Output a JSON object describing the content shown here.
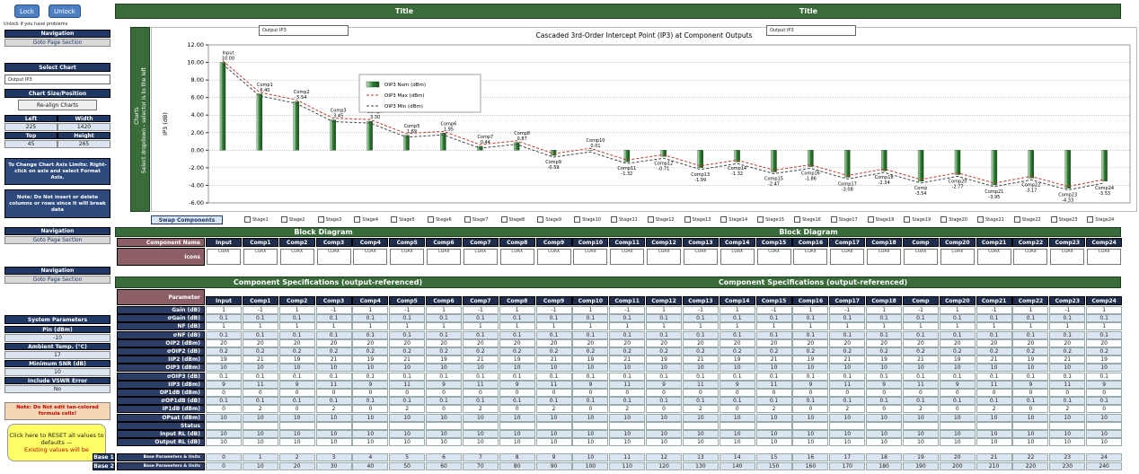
{
  "sidebar": {
    "lock": "Lock",
    "unlock": "Unlock",
    "unlock_hint": "Unlock if you have problems",
    "nav": [
      {
        "title": "Navigation",
        "link": "Goto Page Section"
      },
      {
        "title": "Navigation",
        "link": "Goto Page Section"
      },
      {
        "title": "Navigation",
        "link": "Goto Page Section"
      }
    ],
    "select_chart": {
      "title": "Select Chart",
      "value": "Output IP3"
    },
    "chart_size": {
      "title": "Chart Size/Position",
      "button": "Re-align Charts",
      "fields": [
        {
          "label": "Left",
          "value": 225
        },
        {
          "label": "Width",
          "value": 1420
        },
        {
          "label": "Top",
          "value": 45
        },
        {
          "label": "Height",
          "value": 265
        }
      ]
    },
    "axis_tip": "To Change Chart Axis Limits: Right-click on axis and select Format Axis.",
    "insert_note": "Note: Do Not insert or delete columns or rows since it will break data",
    "system": {
      "title": "System Parameters",
      "fields": [
        {
          "label": "Pin (dBm)",
          "value": -10
        },
        {
          "label": "Ambient Temp. (°C)",
          "value": 17
        },
        {
          "label": "Minimum SNR (dB)",
          "value": 10
        },
        {
          "label": "Include VSWR Error",
          "value": "No"
        }
      ]
    },
    "formula_note": "Note: Do Not edit tan-colored formula cells!",
    "reset": {
      "text": "Click here to RESET all values to defaults —",
      "warning": "Existing values will be"
    },
    "base_labels": [
      "Base 1",
      "Base 2"
    ]
  },
  "titles": [
    "Title",
    "Title"
  ],
  "charts_panel": {
    "title": "Charts",
    "hint": "Select dropdown - selector is to the left"
  },
  "chart_selectors": [
    "Output IP3",
    "Output IP3"
  ],
  "chart_data": {
    "type": "bar",
    "title": "Cascaded 3rd-Order Intercept Point (IP3) at Component Outputs",
    "y_label": "IP3 (dB)",
    "categories": [
      "Input",
      "Comp1",
      "Comp2",
      "Comp3",
      "Comp4",
      "Comp5",
      "Comp6",
      "Comp7",
      "Comp8",
      "Comp9",
      "Comp10",
      "Comp11",
      "Comp12",
      "Comp13",
      "Comp14",
      "Comp15",
      "Comp16",
      "Comp17",
      "Comp18",
      "Comp",
      "Comp20",
      "Comp21",
      "Comp22",
      "Comp23",
      "Comp24"
    ],
    "series": [
      {
        "name": "OIP3 Nom (dBm)",
        "color": "#2e7d32",
        "values": [
          10,
          6.4,
          5.54,
          3.45,
          3.3,
          1.69,
          1.95,
          0.44,
          0.87,
          -0.59,
          0.01,
          -1.32,
          -0.71,
          -1.99,
          -1.32,
          -2.47,
          -1.86,
          -3.08,
          -2.34,
          -3.54,
          -2.77,
          -3.95,
          -3.17,
          -4.33,
          -3.53
        ],
        "value_labels": [
          "10.00",
          "6.40",
          "5.54",
          "3.45",
          "3.30",
          "1.69",
          "1.95",
          "0.44",
          "0.87",
          "-0.59",
          "0.01",
          "-1.32",
          "-0.71",
          "-1.99",
          "-1.32",
          "-2.47",
          "-1.86",
          "-3.08",
          "-2.34",
          "-3.54",
          "-2.77",
          "-3.95",
          "-3.17",
          "-4.33",
          "-3.53"
        ]
      },
      {
        "name": "OIP3 Max (dBm)",
        "color": "#c0392b",
        "values": [
          10.2,
          6.6,
          5.74,
          3.65,
          3.5,
          1.89,
          2.15,
          0.64,
          1.07,
          -0.39,
          0.21,
          -1.12,
          -0.51,
          -1.79,
          -1.12,
          -2.27,
          -1.66,
          -2.88,
          -2.14,
          -3.34,
          -2.57,
          -3.75,
          -2.97,
          -4.13,
          -3.33
        ]
      },
      {
        "name": "OIP3 Min (dBm)",
        "color": "#444444",
        "values": [
          9.8,
          6.2,
          5.34,
          3.25,
          3.1,
          1.49,
          1.75,
          0.24,
          0.67,
          -0.79,
          -0.19,
          -1.52,
          -0.91,
          -2.19,
          -1.52,
          -2.67,
          -2.06,
          -3.28,
          -2.54,
          -3.74,
          -2.97,
          -4.15,
          -3.37,
          -4.53,
          -3.73
        ]
      }
    ],
    "ylim": [
      -6,
      12
    ],
    "yticks": [
      {
        "value": -6,
        "label": "-6.00"
      },
      {
        "value": -4,
        "label": "-4.00"
      },
      {
        "value": -2,
        "label": "-2.00"
      },
      {
        "value": 0,
        "label": "0.00"
      },
      {
        "value": 2,
        "label": "2.00"
      },
      {
        "value": 4,
        "label": "4.00"
      },
      {
        "value": 6,
        "label": "6.00"
      },
      {
        "value": 8,
        "label": "8.00"
      },
      {
        "value": 10,
        "label": "10.00"
      },
      {
        "value": 12,
        "label": "12.00"
      }
    ],
    "grid": true
  },
  "swap": {
    "label": "Swap Components",
    "stages": [
      "Stage1",
      "Stage2",
      "Stage3",
      "Stage4",
      "Stage5",
      "Stage6",
      "Stage7",
      "Stage8",
      "Stage9",
      "Stage10",
      "Stage11",
      "Stage12",
      "Stage13",
      "Stage14",
      "Stage15",
      "Stage16",
      "Stage17",
      "Stage18",
      "Stage19",
      "Stage20",
      "Stage21",
      "Stage22",
      "Stage23",
      "Stage24"
    ]
  },
  "block_diagram": {
    "titles": [
      "Block Diagram",
      "Block Diagram"
    ],
    "name_label": "Component Name",
    "icons_label": "Icons",
    "components": [
      "Input",
      "Comp1",
      "Comp2",
      "Comp3",
      "Comp4",
      "Comp5",
      "Comp6",
      "Comp7",
      "Comp8",
      "Comp9",
      "Comp10",
      "Comp11",
      "Comp12",
      "Comp13",
      "Comp14",
      "Comp15",
      "Comp16",
      "Comp17",
      "Comp18",
      "Comp",
      "Comp20",
      "Comp21",
      "Comp22",
      "Comp23",
      "Comp24"
    ],
    "icons": [
      "COAX",
      "COAX",
      "COAX",
      "COAX",
      "COAX",
      "COAX",
      "COAX",
      "COAX",
      "COAX",
      "COAX",
      "COAX",
      "COAX",
      "COAX",
      "COAX",
      "COAX",
      "COAX",
      "COAX",
      "COAX",
      "COAX",
      "COAX",
      "COAX",
      "COAX",
      "COAX",
      "COAX",
      "COAX"
    ]
  },
  "specs": {
    "titles": [
      "Component Specifications (output-referenced)",
      "Component Specifications (output-referenced)"
    ],
    "parameter_label": "Parameter",
    "rows": [
      {
        "label": "Gain (dB)",
        "values": [
          1,
          -1,
          1,
          -1,
          1,
          -1,
          1,
          -1,
          1,
          -1,
          1,
          -1,
          1,
          -1,
          1,
          -1,
          1,
          -1,
          1,
          -1,
          1,
          -1,
          1,
          -1,
          1
        ]
      },
      {
        "label": "σGain (dB)",
        "values": [
          0.1,
          0.1,
          0.1,
          0.1,
          0.1,
          0.1,
          0.1,
          0.1,
          0.1,
          0.1,
          0.1,
          0.1,
          0.1,
          0.1,
          0.1,
          0.1,
          0.1,
          0.1,
          0.1,
          0.1,
          0.1,
          0.1,
          0.1,
          0.1,
          0.1
        ]
      },
      {
        "label": "NF (dB)",
        "values": [
          1,
          1,
          1,
          1,
          1,
          1,
          1,
          1,
          1,
          1,
          1,
          1,
          1,
          1,
          1,
          1,
          1,
          1,
          1,
          1,
          1,
          1,
          1,
          1,
          1
        ]
      },
      {
        "label": "σNF (dB)",
        "values": [
          0.1,
          0.1,
          0.1,
          0.1,
          0.1,
          0.1,
          0.1,
          0.1,
          0.1,
          0.1,
          0.1,
          0.1,
          0.1,
          0.1,
          0.1,
          0.1,
          0.1,
          0.1,
          0.1,
          0.1,
          0.1,
          0.1,
          0.1,
          0.1,
          0.1
        ]
      },
      {
        "label": "OIP2 (dBm)",
        "values": [
          20,
          20,
          20,
          20,
          20,
          20,
          20,
          20,
          20,
          20,
          20,
          20,
          20,
          20,
          20,
          20,
          20,
          20,
          20,
          20,
          20,
          20,
          20,
          20,
          20
        ]
      },
      {
        "label": "σOIP2 (dB)",
        "values": [
          0.2,
          0.2,
          0.2,
          0.2,
          0.2,
          0.2,
          0.2,
          0.2,
          0.2,
          0.2,
          0.2,
          0.2,
          0.2,
          0.2,
          0.2,
          0.2,
          0.2,
          0.2,
          0.2,
          0.2,
          0.2,
          0.2,
          0.2,
          0.2,
          0.2
        ]
      },
      {
        "label": "IIP2 (dBm)",
        "values": [
          19,
          21,
          19,
          21,
          19,
          21,
          19,
          21,
          19,
          21,
          19,
          21,
          19,
          21,
          19,
          21,
          19,
          21,
          19,
          21,
          19,
          21,
          19,
          21,
          19
        ]
      },
      {
        "label": "OIP3 (dBm)",
        "values": [
          10,
          10,
          10,
          10,
          10,
          10,
          10,
          10,
          10,
          10,
          10,
          10,
          10,
          10,
          10,
          10,
          10,
          10,
          10,
          10,
          10,
          10,
          10,
          10,
          10
        ]
      },
      {
        "label": "σOIP3 (dB)",
        "values": [
          0.1,
          0.1,
          0.1,
          0.1,
          0.1,
          0.1,
          0.1,
          0.1,
          0.1,
          0.1,
          0.1,
          0.1,
          0.1,
          0.1,
          0.1,
          0.1,
          0.1,
          0.1,
          0.1,
          0.1,
          0.1,
          0.1,
          0.1,
          0.1,
          0.1
        ]
      },
      {
        "label": "IIP3 (dBm)",
        "values": [
          9,
          11,
          9,
          11,
          9,
          11,
          9,
          11,
          9,
          11,
          9,
          11,
          9,
          11,
          9,
          11,
          9,
          11,
          9,
          11,
          9,
          11,
          9,
          11,
          9
        ]
      },
      {
        "label": "OP1dB (dBm)",
        "values": [
          0,
          0,
          0,
          0,
          0,
          0,
          0,
          0,
          0,
          0,
          0,
          0,
          0,
          0,
          0,
          0,
          0,
          0,
          0,
          0,
          0,
          0,
          0,
          0,
          0
        ]
      },
      {
        "label": "σOP1dB (dB)",
        "values": [
          0.1,
          0.1,
          0.1,
          0.1,
          0.1,
          0.1,
          0.1,
          0.1,
          0.1,
          0.1,
          0.1,
          0.1,
          0.1,
          0.1,
          0.1,
          0.1,
          0.1,
          0.1,
          0.1,
          0.1,
          0.1,
          0.1,
          0.1,
          0.1,
          0.1
        ]
      },
      {
        "label": "IP1dB (dBm)",
        "values": [
          0,
          2,
          0,
          2,
          0,
          2,
          0,
          2,
          0,
          2,
          0,
          2,
          0,
          2,
          0,
          2,
          0,
          2,
          0,
          2,
          0,
          2,
          0,
          2,
          0
        ]
      },
      {
        "label": "OPsat (dBm)",
        "values": [
          10,
          10,
          10,
          10,
          10,
          10,
          10,
          10,
          10,
          10,
          10,
          10,
          10,
          10,
          10,
          10,
          10,
          10,
          10,
          10,
          10,
          10,
          10,
          10,
          10
        ]
      },
      {
        "label": "Status"
      },
      {
        "label": "Input RL (dB)",
        "values": [
          10,
          10,
          10,
          10,
          10,
          10,
          10,
          10,
          10,
          10,
          10,
          10,
          10,
          10,
          10,
          10,
          10,
          10,
          10,
          10,
          10,
          10,
          10,
          10,
          10
        ]
      },
      {
        "label": "Output RL (dB)",
        "values": [
          10,
          10,
          10,
          10,
          10,
          10,
          10,
          10,
          10,
          10,
          10,
          10,
          10,
          10,
          10,
          10,
          10,
          10,
          10,
          10,
          10,
          10,
          10,
          10,
          10
        ]
      }
    ],
    "base_rows": [
      {
        "label": "Base Parameters & Units",
        "values": [
          0,
          1,
          2,
          3,
          4,
          5,
          6,
          7,
          8,
          9,
          10,
          11,
          12,
          13,
          14,
          15,
          16,
          17,
          18,
          19,
          20,
          21,
          22,
          23,
          24
        ]
      },
      {
        "label": "Base Parameters & Units",
        "values": [
          0,
          10,
          20,
          30,
          40,
          50,
          60,
          70,
          80,
          90,
          100,
          110,
          120,
          130,
          140,
          150,
          160,
          170,
          180,
          190,
          200,
          210,
          220,
          230,
          240
        ]
      }
    ]
  }
}
